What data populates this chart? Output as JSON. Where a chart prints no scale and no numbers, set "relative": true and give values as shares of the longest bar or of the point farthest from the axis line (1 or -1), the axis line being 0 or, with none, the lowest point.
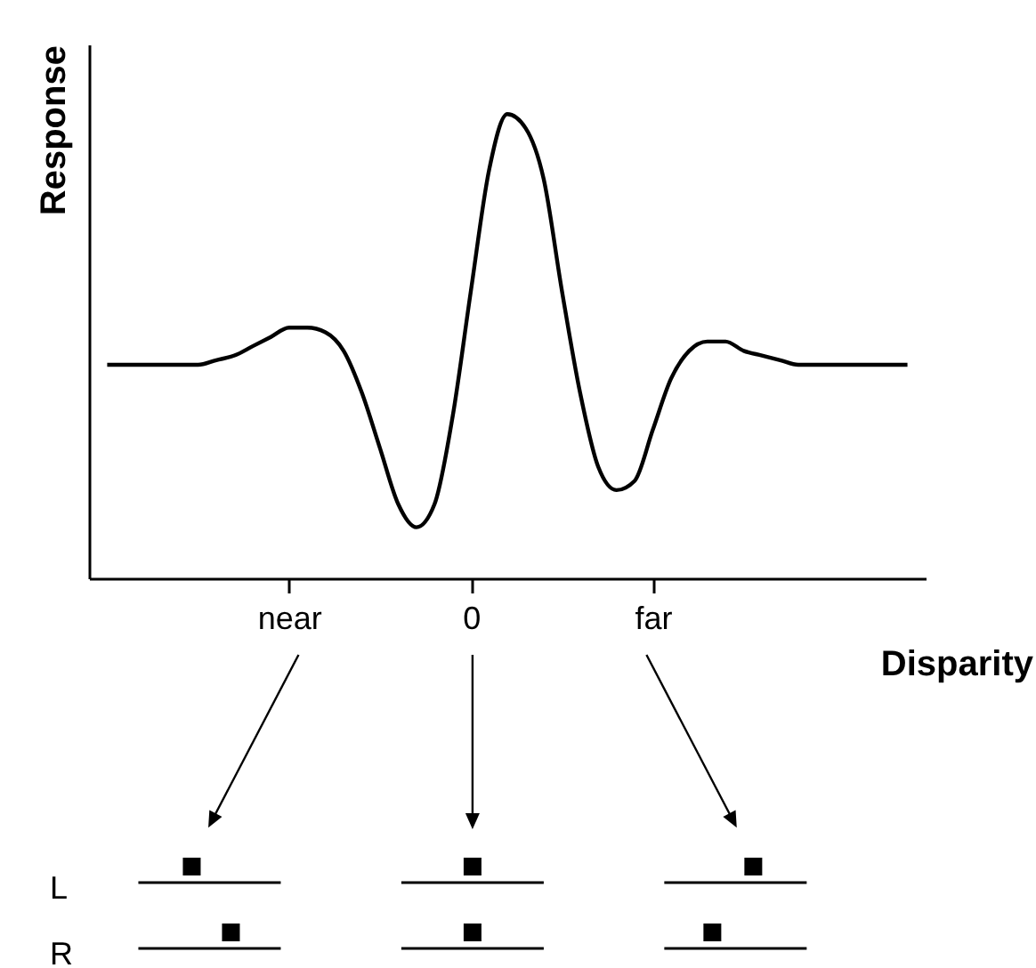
{
  "chart_data": {
    "type": "line",
    "relative": true,
    "xlabel": "Disparity",
    "ylabel": "Response",
    "tick_labels": "x",
    "grid": false,
    "categories": [
      null,
      null,
      null,
      null,
      null,
      null,
      null,
      null,
      null,
      null,
      "near",
      null,
      null,
      null,
      null,
      null,
      null,
      null,
      null,
      null,
      "0",
      null,
      null,
      null,
      null,
      null,
      null,
      null,
      null,
      null,
      "far",
      null,
      null,
      null,
      null,
      null,
      null,
      null,
      null,
      null,
      null,
      null,
      null,
      null,
      null
    ],
    "series": [
      {
        "color": "#000000",
        "values": [
          0.46,
          0.46,
          0.46,
          0.46,
          0.46,
          0.46,
          0.47,
          0.48,
          0.5,
          0.52,
          0.54,
          0.54,
          0.53,
          0.49,
          0.4,
          0.28,
          0.16,
          0.11,
          0.16,
          0.35,
          0.62,
          0.88,
          1,
          0.97,
          0.86,
          0.62,
          0.4,
          0.24,
          0.19,
          0.21,
          0.32,
          0.43,
          0.49,
          0.51,
          0.51,
          0.49,
          0.48,
          0.47,
          0.46,
          0.46,
          0.46,
          0.46,
          0.46,
          0.46,
          0.46
        ]
      }
    ],
    "annotations": [
      "L",
      "R"
    ]
  }
}
